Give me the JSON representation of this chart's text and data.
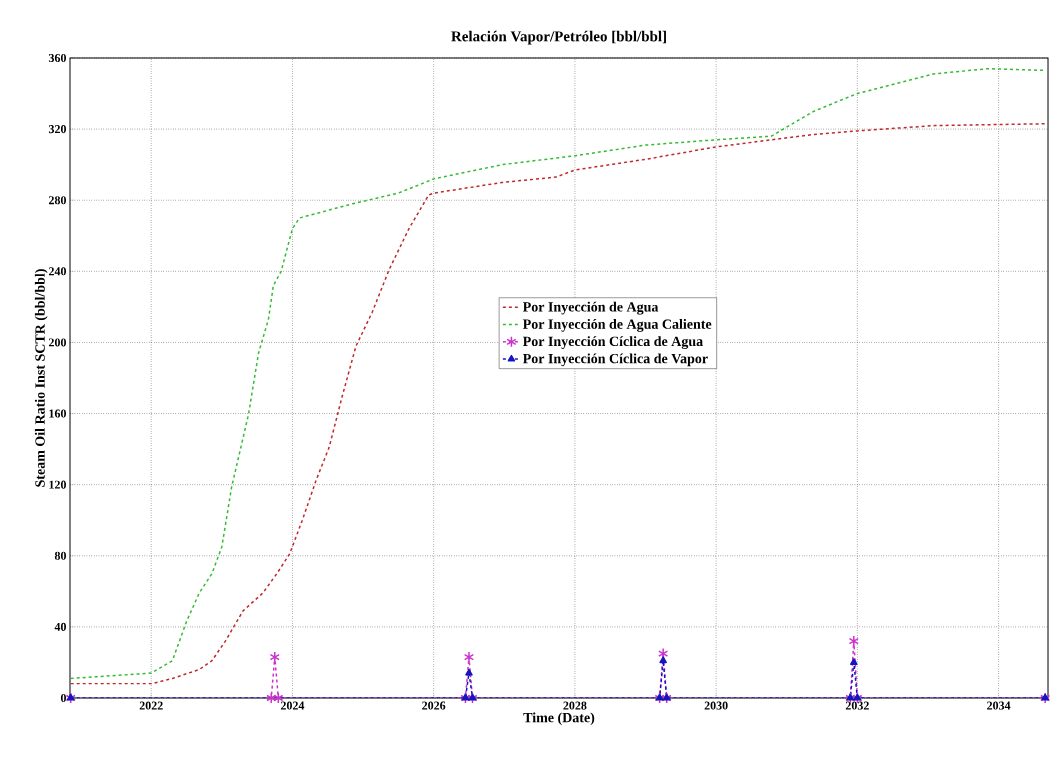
{
  "chart_data": {
    "type": "line",
    "title": "Relación Vapor/Petróleo [bbl/bbl]",
    "xlabel": "Time (Date)",
    "ylabel": "Steam Oil Ratio Inst SCTR (bbl/bbl)",
    "xlim": [
      2020.85,
      2034.7
    ],
    "xticks": [
      2022,
      2024,
      2026,
      2028,
      2030,
      2032,
      2034
    ],
    "ylim": [
      0,
      360
    ],
    "yticks": [
      0,
      40,
      80,
      120,
      160,
      200,
      240,
      280,
      320,
      360
    ],
    "grid": true,
    "legend": "center",
    "series": [
      {
        "name": "Por Inyección de Agua",
        "color": "#c0282a",
        "line_style": "dashed",
        "marker": "none",
        "x": [
          2020.86,
          2022,
          2022.3,
          2022.68,
          2022.86,
          2023.05,
          2023.3,
          2023.58,
          2023.78,
          2023.96,
          2024.14,
          2024.34,
          2024.52,
          2024.7,
          2024.9,
          2025.13,
          2025.37,
          2025.65,
          2025.93,
          2026,
          2026.97,
          2027.73,
          2028,
          2029,
          2030,
          2031.38,
          2032,
          2033.1,
          2034.66
        ],
        "values": [
          8,
          8,
          11,
          16,
          21,
          32,
          49,
          59,
          70,
          81,
          100,
          123,
          141,
          169,
          198,
          217,
          241,
          264,
          283,
          284,
          290,
          293,
          297,
          303,
          310,
          317,
          319,
          322,
          323
        ]
      },
      {
        "name": "Por Inyección de Agua Caliente",
        "color": "#33bb33",
        "line_style": "dashed",
        "marker": "none",
        "x": [
          2020.86,
          2022,
          2022.3,
          2022.5,
          2022.68,
          2022.86,
          2023,
          2023.14,
          2023.27,
          2023.38,
          2023.52,
          2023.66,
          2023.73,
          2023.84,
          2024,
          2024.1,
          2024.85,
          2025.5,
          2026,
          2026.97,
          2028,
          2029,
          2030,
          2030.78,
          2031.38,
          2032,
          2033.07,
          2033.85,
          2034.66
        ],
        "values": [
          11,
          14,
          21,
          43,
          59,
          70,
          85,
          119,
          141,
          160,
          194,
          213,
          232,
          240,
          264,
          270,
          278,
          284,
          292,
          300,
          305,
          311,
          314,
          316,
          330,
          340,
          351,
          354,
          353
        ]
      },
      {
        "name": "Por Inyección Cíclica de Agua",
        "color": "#cc33cc",
        "line_style": "dashed",
        "marker": "cross",
        "x": [
          2020.86,
          2023.7,
          2023.75,
          2023.8,
          2026.45,
          2026.5,
          2026.55,
          2029.2,
          2029.25,
          2029.3,
          2031.9,
          2031.95,
          2032.0,
          2034.66
        ],
        "values": [
          0,
          0,
          23,
          0,
          0,
          23,
          0,
          0,
          25,
          0,
          0,
          32,
          0,
          0
        ]
      },
      {
        "name": "Por Inyección Cíclica de Vapor",
        "color": "#1515c0",
        "line_style": "dashed",
        "marker": "triangle",
        "x": [
          2020.86,
          2026.45,
          2026.5,
          2026.55,
          2029.2,
          2029.25,
          2029.3,
          2031.9,
          2031.95,
          2032.0,
          2034.66
        ],
        "values": [
          0,
          0,
          14,
          0,
          0,
          21,
          0,
          0,
          20,
          0,
          0
        ]
      }
    ]
  }
}
